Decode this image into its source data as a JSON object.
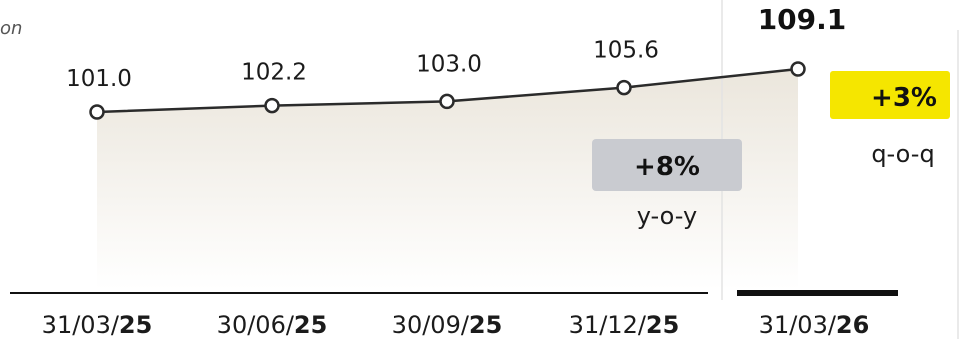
{
  "chart_data": {
    "type": "line",
    "categories": [
      {
        "prefix": "31/03/",
        "year": "25"
      },
      {
        "prefix": "30/06/",
        "year": "25"
      },
      {
        "prefix": "30/09/",
        "year": "25"
      },
      {
        "prefix": "31/12/",
        "year": "25"
      },
      {
        "prefix": "31/03/",
        "year": "26"
      }
    ],
    "values": [
      101.0,
      102.2,
      103.0,
      105.6,
      109.1
    ],
    "value_labels": [
      "101.0",
      "102.2",
      "103.0",
      "105.6",
      "109.1"
    ],
    "title": "",
    "title_fragment": "on",
    "xlabel": "",
    "ylabel": "",
    "grid": false,
    "legend": "none",
    "annotations": [
      {
        "text": "+3%",
        "caption": "q-o-q",
        "color": "#f5e600"
      },
      {
        "text": "+8%",
        "caption": "y-o-y",
        "color": "#c9cbd0"
      }
    ]
  },
  "colors": {
    "line": "#2b2b2b",
    "marker_fill": "#ffffff",
    "area_top": "#ebe6dc",
    "area_bottom": "#ffffff",
    "axis": "#111111",
    "divider": "#e3e3e3"
  }
}
